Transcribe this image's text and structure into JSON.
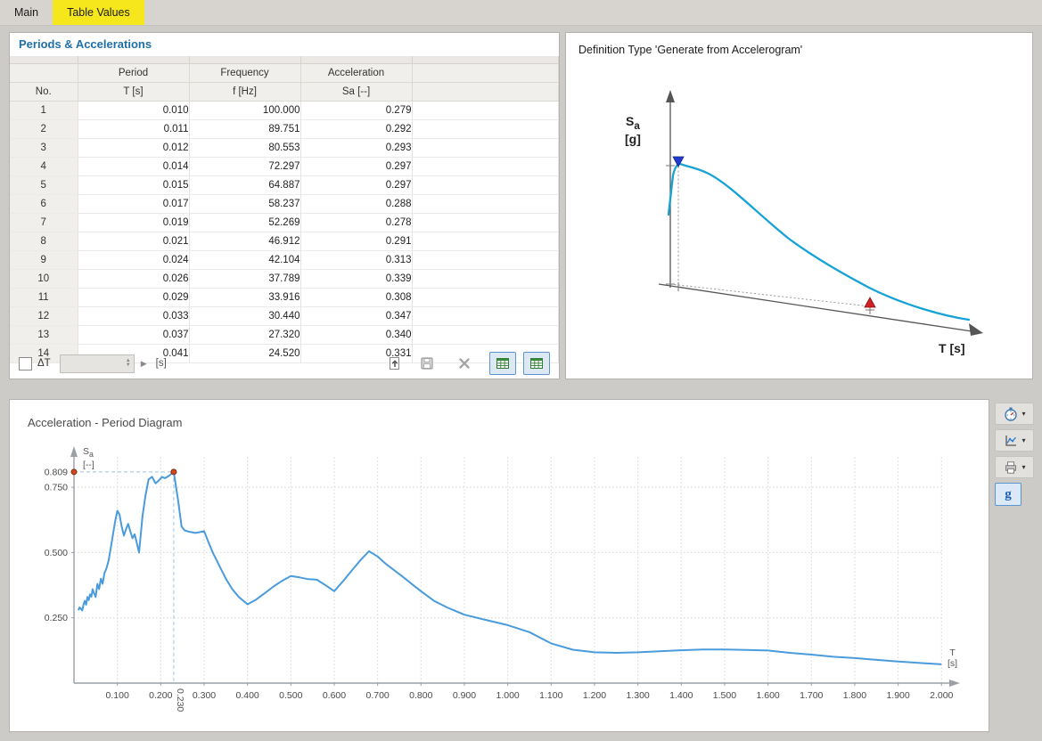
{
  "tabs": {
    "main": "Main",
    "table_values": "Table Values"
  },
  "left_panel": {
    "title": "Periods & Accelerations",
    "columns": {
      "no": "No.",
      "period": "Period",
      "period_unit": "T [s]",
      "frequency": "Frequency",
      "frequency_unit": "f [Hz]",
      "acceleration": "Acceleration",
      "acceleration_unit": "Sa [--]"
    },
    "rows": [
      [
        "1",
        "0.010",
        "100.000",
        "0.279"
      ],
      [
        "2",
        "0.011",
        "89.751",
        "0.292"
      ],
      [
        "3",
        "0.012",
        "80.553",
        "0.293"
      ],
      [
        "4",
        "0.014",
        "72.297",
        "0.297"
      ],
      [
        "5",
        "0.015",
        "64.887",
        "0.297"
      ],
      [
        "6",
        "0.017",
        "58.237",
        "0.288"
      ],
      [
        "7",
        "0.019",
        "52.269",
        "0.278"
      ],
      [
        "8",
        "0.021",
        "46.912",
        "0.291"
      ],
      [
        "9",
        "0.024",
        "42.104",
        "0.313"
      ],
      [
        "10",
        "0.026",
        "37.789",
        "0.339"
      ],
      [
        "11",
        "0.029",
        "33.916",
        "0.308"
      ],
      [
        "12",
        "0.033",
        "30.440",
        "0.347"
      ],
      [
        "13",
        "0.037",
        "27.320",
        "0.340"
      ],
      [
        "14",
        "0.041",
        "24.520",
        "0.331"
      ]
    ],
    "footer": {
      "delta_label": "ΔT",
      "unit": "[s]"
    }
  },
  "right_panel": {
    "title": "Definition Type 'Generate from Accelerogram'",
    "y_symbol": "S",
    "y_sub": "a",
    "y_unit": "[g]",
    "x_symbol": "T",
    "x_unit": "[s]"
  },
  "chart_panel": {
    "title": "Acceleration - Period Diagram",
    "y_symbol": "S",
    "y_sub": "a",
    "y_unit": "[--]",
    "x_symbol": "T",
    "x_unit": "[s]"
  },
  "toolbar": {
    "g_label": "g"
  },
  "chart_data": {
    "type": "line",
    "title": "Acceleration - Period Diagram",
    "xlabel": "T [s]",
    "ylabel": "Sa [--]",
    "xlim": [
      0,
      2.02
    ],
    "ylim": [
      0,
      0.88
    ],
    "grid": true,
    "line_color": "#4a9bdc",
    "x": [
      0.01,
      0.013,
      0.016,
      0.019,
      0.022,
      0.025,
      0.028,
      0.031,
      0.034,
      0.037,
      0.04,
      0.043,
      0.046,
      0.05,
      0.054,
      0.058,
      0.062,
      0.066,
      0.07,
      0.075,
      0.08,
      0.085,
      0.09,
      0.095,
      0.1,
      0.105,
      0.11,
      0.115,
      0.12,
      0.125,
      0.13,
      0.135,
      0.14,
      0.145,
      0.15,
      0.158,
      0.165,
      0.172,
      0.18,
      0.188,
      0.195,
      0.203,
      0.21,
      0.22,
      0.23,
      0.24,
      0.248,
      0.255,
      0.265,
      0.28,
      0.29,
      0.3,
      0.31,
      0.32,
      0.335,
      0.35,
      0.365,
      0.38,
      0.4,
      0.42,
      0.44,
      0.46,
      0.48,
      0.5,
      0.52,
      0.54,
      0.56,
      0.58,
      0.6,
      0.62,
      0.64,
      0.66,
      0.68,
      0.7,
      0.72,
      0.74,
      0.76,
      0.78,
      0.8,
      0.83,
      0.86,
      0.9,
      0.95,
      1.0,
      1.05,
      1.1,
      1.15,
      1.2,
      1.25,
      1.3,
      1.35,
      1.4,
      1.45,
      1.5,
      1.55,
      1.6,
      1.65,
      1.7,
      1.75,
      1.8,
      1.85,
      1.9,
      1.95,
      2.0
    ],
    "y": [
      0.279,
      0.29,
      0.285,
      0.278,
      0.3,
      0.315,
      0.3,
      0.33,
      0.318,
      0.34,
      0.331,
      0.36,
      0.345,
      0.33,
      0.38,
      0.36,
      0.4,
      0.38,
      0.42,
      0.44,
      0.47,
      0.52,
      0.57,
      0.62,
      0.66,
      0.645,
      0.6,
      0.565,
      0.59,
      0.61,
      0.58,
      0.555,
      0.57,
      0.535,
      0.5,
      0.64,
      0.72,
      0.78,
      0.79,
      0.765,
      0.775,
      0.79,
      0.785,
      0.795,
      0.809,
      0.7,
      0.6,
      0.585,
      0.58,
      0.575,
      0.578,
      0.582,
      0.54,
      0.5,
      0.45,
      0.4,
      0.36,
      0.33,
      0.302,
      0.32,
      0.345,
      0.37,
      0.392,
      0.41,
      0.405,
      0.398,
      0.396,
      0.375,
      0.352,
      0.39,
      0.43,
      0.47,
      0.505,
      0.485,
      0.455,
      0.43,
      0.405,
      0.378,
      0.352,
      0.315,
      0.29,
      0.262,
      0.242,
      0.222,
      0.195,
      0.152,
      0.128,
      0.118,
      0.116,
      0.118,
      0.122,
      0.126,
      0.129,
      0.129,
      0.127,
      0.125,
      0.116,
      0.109,
      0.101,
      0.096,
      0.089,
      0.083,
      0.077,
      0.072
    ],
    "x_tick_labels": [
      "0.100",
      "0.200",
      "0.300",
      "0.400",
      "0.500",
      "0.600",
      "0.700",
      "0.800",
      "0.900",
      "1.000",
      "1.100",
      "1.200",
      "1.300",
      "1.400",
      "1.500",
      "1.600",
      "1.700",
      "1.800",
      "1.900",
      "2.000"
    ],
    "y_grid": [
      0.25,
      0.5,
      0.75
    ],
    "y_tick_labels": [
      {
        "v": 0.809,
        "t": "0.809"
      },
      {
        "v": 0.75,
        "t": "0.750"
      },
      {
        "v": 0.5,
        "t": "0.500"
      },
      {
        "v": 0.25,
        "t": "0.250"
      }
    ],
    "highlight": {
      "x": 0.23,
      "y": 0.809,
      "label": "0.230"
    },
    "legend": null
  }
}
